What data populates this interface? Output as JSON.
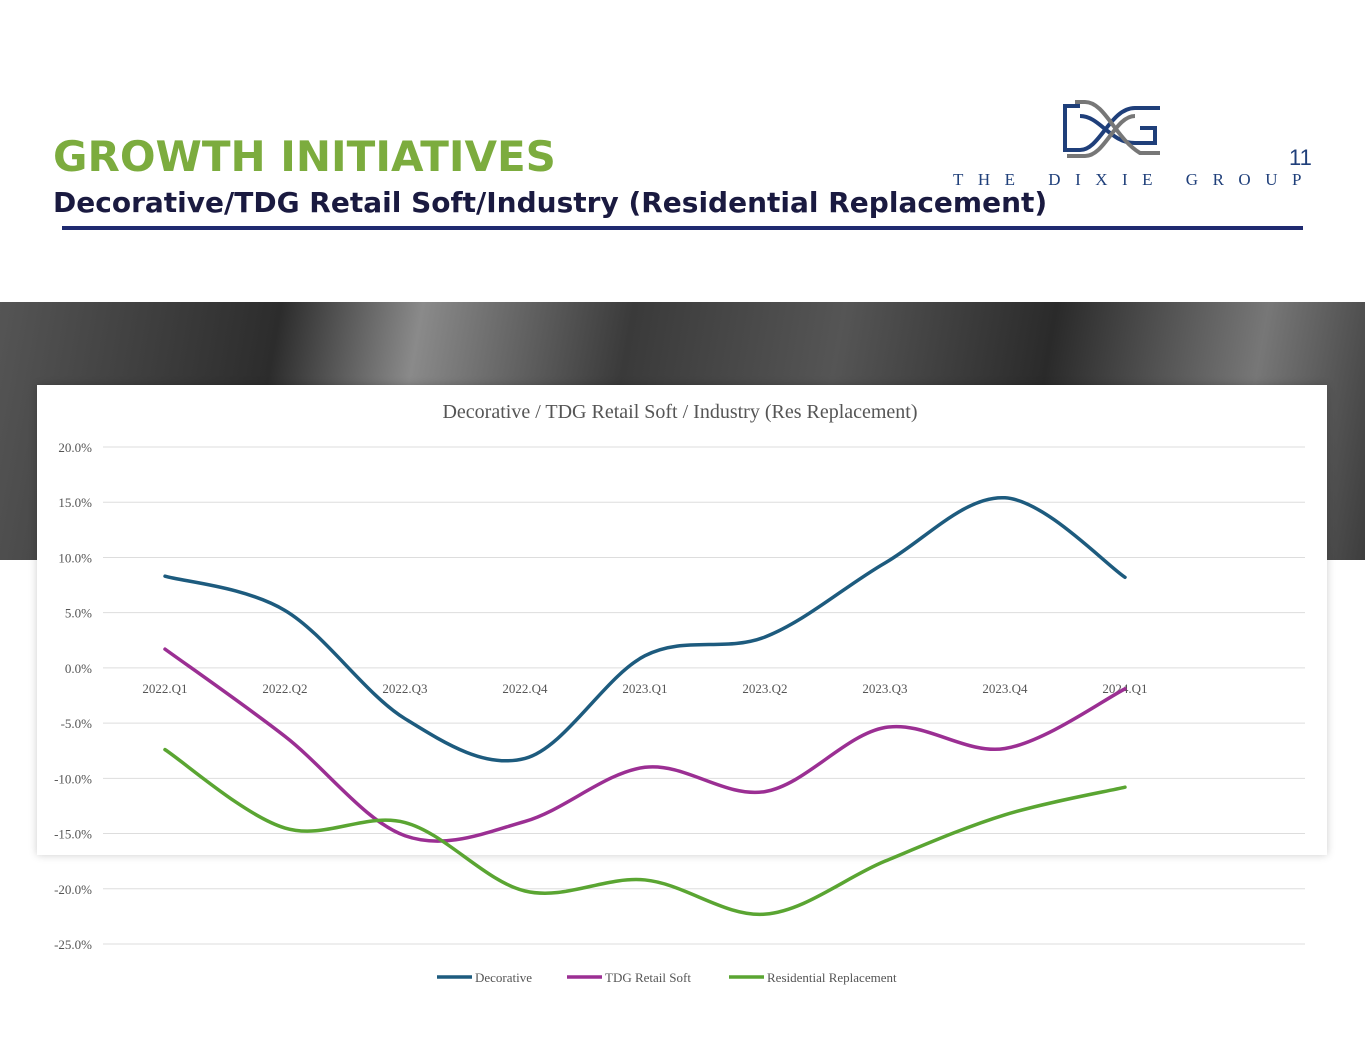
{
  "header": {
    "title": "GROWTH INITIATIVES",
    "subtitle": "Decorative/TDG Retail Soft/Industry (Residential Replacement)",
    "page_number": "11",
    "logo_text": "THE DIXIE GROUP"
  },
  "colors": {
    "title": "#7cac3e",
    "rule": "#1f2a70",
    "decorative": "#1d5b7e",
    "tdg": "#9b2f93",
    "res": "#5aa532"
  },
  "chart_data": {
    "type": "line",
    "title": "Decorative / TDG Retail Soft / Industry (Res Replacement)",
    "categories": [
      "2022.Q1",
      "2022.Q2",
      "2022.Q3",
      "2022.Q4",
      "2023.Q1",
      "2023.Q2",
      "2023.Q3",
      "2023.Q4",
      "2024.Q1"
    ],
    "ylim": [
      -25,
      20
    ],
    "yticks": [
      20,
      15,
      10,
      5,
      0,
      -5,
      -10,
      -15,
      -20,
      -25
    ],
    "ytick_labels": [
      "20.0%",
      "15.0%",
      "10.0%",
      "5.0%",
      "0.0%",
      "-5.0%",
      "-10.0%",
      "-15.0%",
      "-20.0%",
      "-25.0%"
    ],
    "grid": true,
    "legend_position": "bottom",
    "series": [
      {
        "name": "Decorative",
        "color": "#1d5b7e",
        "values": [
          8.3,
          5.2,
          -4.6,
          -8.2,
          1.1,
          2.8,
          9.5,
          15.4,
          8.2
        ]
      },
      {
        "name": "TDG Retail Soft",
        "color": "#9b2f93",
        "values": [
          1.7,
          -6.2,
          -15.2,
          -13.9,
          -9.0,
          -11.2,
          -5.4,
          -7.3,
          -1.9
        ]
      },
      {
        "name": "Residential Replacement",
        "color": "#5aa532",
        "values": [
          -7.4,
          -14.5,
          -14.0,
          -20.2,
          -19.2,
          -22.3,
          -17.5,
          -13.3,
          -10.8
        ]
      }
    ]
  }
}
